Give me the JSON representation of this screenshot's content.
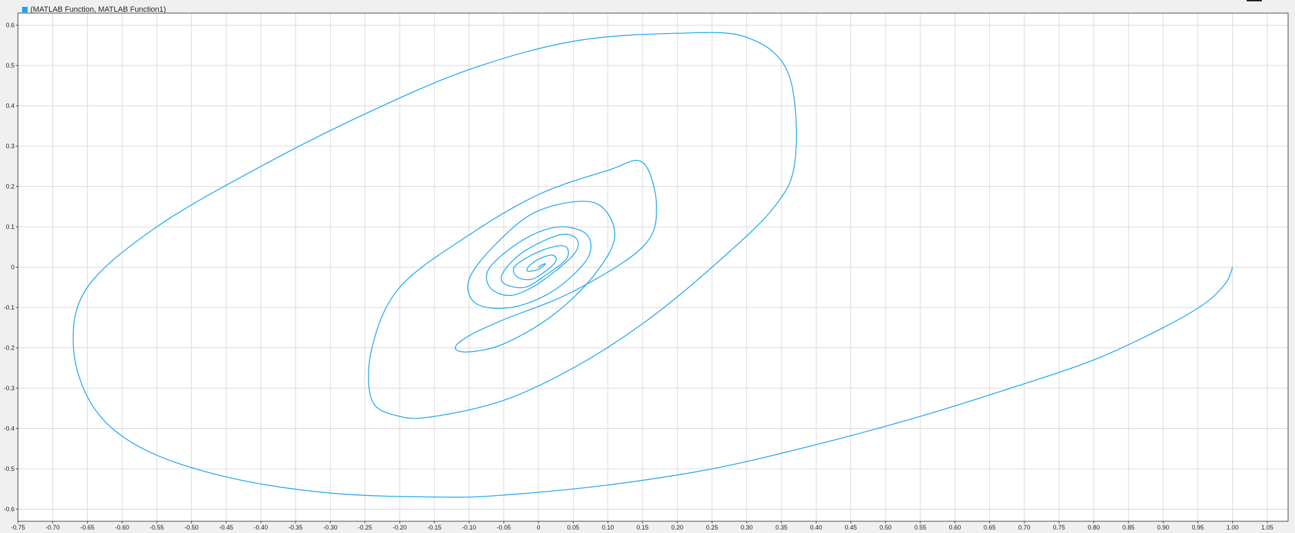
{
  "legend": {
    "label": "(MATLAB Function, MATLAB Function1)"
  },
  "colors": {
    "series": "#1ea6ee",
    "grid": "#d9d9d9",
    "axis": "#444444",
    "plot_bg": "#ffffff",
    "page_bg": "#f0f0f0"
  },
  "chart_data": {
    "type": "line",
    "title": "",
    "xlabel": "",
    "ylabel": "",
    "xlim": [
      -0.75,
      1.08
    ],
    "ylim": [
      -0.63,
      0.63
    ],
    "grid": true,
    "legend_position": "top-left",
    "xticks": [
      -0.75,
      -0.7,
      -0.65,
      -0.6,
      -0.55,
      -0.5,
      -0.45,
      -0.4,
      -0.35,
      -0.3,
      -0.25,
      -0.2,
      -0.15,
      -0.1,
      -0.05,
      0,
      0.05,
      0.1,
      0.15,
      0.2,
      0.25,
      0.3,
      0.35,
      0.4,
      0.45,
      0.5,
      0.55,
      0.6,
      0.65,
      0.7,
      0.75,
      0.8,
      0.85,
      0.9,
      0.95,
      1.0,
      1.05
    ],
    "xtick_labels": [
      "-0.75",
      "-0.70",
      "-0.65",
      "-0.60",
      "-0.55",
      "-0.50",
      "-0.45",
      "-0.40",
      "-0.35",
      "-0.30",
      "-0.25",
      "-0.20",
      "-0.15",
      "-0.10",
      "-0.05",
      "0",
      "0.05",
      "0.10",
      "0.15",
      "0.20",
      "0.25",
      "0.30",
      "0.35",
      "0.40",
      "0.45",
      "0.50",
      "0.55",
      "0.60",
      "0.65",
      "0.70",
      "0.75",
      "0.80",
      "0.85",
      "0.90",
      "0.95",
      "1.00",
      "1.05"
    ],
    "yticks": [
      0.6,
      0.5,
      0.4,
      0.3,
      0.2,
      0.1,
      0,
      -0.1,
      -0.2,
      -0.3,
      -0.4,
      -0.5,
      -0.6
    ],
    "ytick_labels": [
      "0.6",
      "0.5",
      "0.4",
      "0.3",
      "0.2",
      "0.1",
      "0",
      "-0.1",
      "-0.2",
      "-0.3",
      "-0.4",
      "-0.5",
      "-0.6"
    ],
    "series": [
      {
        "name": "(MATLAB Function, MATLAB Function1)",
        "x": [
          1.0,
          0.99,
          0.96,
          0.9,
          0.8,
          0.68,
          0.55,
          0.4,
          0.25,
          0.1,
          -0.05,
          -0.14,
          -0.3,
          -0.45,
          -0.57,
          -0.64,
          -0.67,
          -0.65,
          -0.55,
          -0.4,
          -0.25,
          -0.1,
          0.05,
          0.2,
          0.3,
          0.36,
          0.37,
          0.34,
          0.25,
          0.15,
          0.05,
          -0.05,
          -0.15,
          -0.2,
          -0.24,
          -0.24,
          -0.2,
          -0.1,
          0.0,
          0.1,
          0.15,
          0.17,
          0.15,
          0.05,
          -0.05,
          -0.1,
          -0.12,
          -0.1,
          -0.05,
          0.02,
          0.08,
          0.11,
          0.08,
          0.0,
          -0.06,
          -0.1,
          -0.09,
          -0.04,
          0.02,
          0.07,
          0.07,
          0.03,
          -0.02,
          -0.07,
          -0.07,
          -0.04,
          0.0,
          0.05,
          0.055,
          0.03,
          -0.02,
          -0.05,
          -0.05,
          -0.02,
          0.01,
          0.04,
          0.04,
          0.02,
          -0.01,
          -0.035,
          -0.03,
          -0.01,
          0.01,
          0.025,
          0.02,
          0.0,
          -0.015,
          -0.015,
          0.0,
          0.01,
          0.005,
          0.0
        ],
        "y": [
          0.0,
          -0.04,
          -0.09,
          -0.15,
          -0.23,
          -0.3,
          -0.37,
          -0.44,
          -0.5,
          -0.54,
          -0.565,
          -0.57,
          -0.56,
          -0.52,
          -0.45,
          -0.35,
          -0.2,
          -0.05,
          0.1,
          0.25,
          0.38,
          0.49,
          0.56,
          0.58,
          0.57,
          0.48,
          0.27,
          0.15,
          0.0,
          -0.14,
          -0.25,
          -0.33,
          -0.37,
          -0.37,
          -0.33,
          -0.2,
          -0.05,
          0.08,
          0.18,
          0.24,
          0.26,
          0.15,
          0.05,
          -0.06,
          -0.13,
          -0.17,
          -0.2,
          -0.21,
          -0.19,
          -0.12,
          -0.02,
          0.08,
          0.16,
          0.14,
          0.06,
          -0.03,
          -0.09,
          -0.1,
          -0.06,
          0.02,
          0.08,
          0.1,
          0.07,
          0.0,
          -0.05,
          -0.07,
          -0.04,
          0.03,
          0.07,
          0.08,
          0.04,
          -0.01,
          -0.04,
          -0.05,
          -0.02,
          0.02,
          0.05,
          0.05,
          0.03,
          0.0,
          -0.025,
          -0.03,
          -0.01,
          0.015,
          0.03,
          0.02,
          0.0,
          -0.01,
          -0.005,
          0.008,
          0.006,
          0.0
        ]
      }
    ]
  }
}
